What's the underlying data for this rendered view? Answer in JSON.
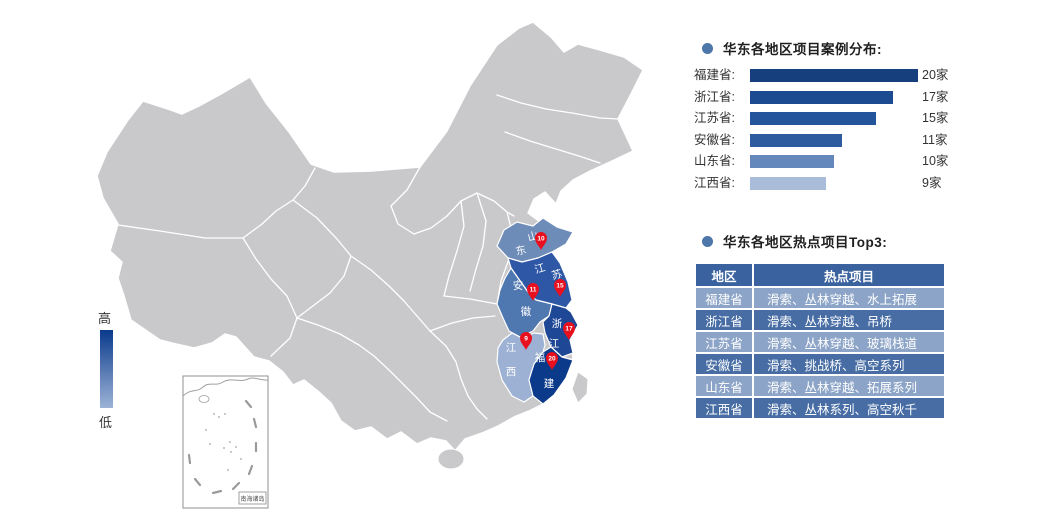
{
  "theme": {
    "bullet_color": "#4d76a9",
    "map_base_color": "#c9c9cc",
    "pin_color": "#e8101f",
    "table_header_bg": "#3a629e",
    "table_row_dark": "#476da4",
    "table_row_light": "#8ca4c7"
  },
  "map": {
    "legend": {
      "high": "高",
      "low": "低",
      "top_color": "#0a3a8c",
      "bottom_color": "#9db3d6"
    },
    "inset_label": "南海诸岛",
    "provinces": [
      {
        "name": "山东省",
        "chars": [
          "山",
          "东"
        ],
        "value": 10,
        "color": "#6d8cb8"
      },
      {
        "name": "江苏省",
        "chars": [
          "江",
          "苏"
        ],
        "value": 15,
        "color": "#2e58a5"
      },
      {
        "name": "安徽省",
        "chars": [
          "安",
          "徽"
        ],
        "value": 11,
        "color": "#4f77b0"
      },
      {
        "name": "浙江省",
        "chars": [
          "浙",
          "江"
        ],
        "value": 17,
        "color": "#1e4896"
      },
      {
        "name": "江西省",
        "chars": [
          "江",
          "西"
        ],
        "value": 9,
        "color": "#9cb1d3"
      },
      {
        "name": "福建省",
        "chars": [
          "福",
          "建"
        ],
        "value": 20,
        "color": "#0c3a8a"
      }
    ]
  },
  "chart_data": {
    "type": "bar",
    "orientation": "horizontal",
    "title": "华东各地区项目案例分布:",
    "categories": [
      "福建省",
      "浙江省",
      "江苏省",
      "安徽省",
      "山东省",
      "江西省"
    ],
    "values": [
      20,
      17,
      15,
      11,
      10,
      9
    ],
    "unit": "家",
    "xlim": [
      0,
      20
    ],
    "bar_labels": [
      "福建省:",
      "浙江省:",
      "江苏省:",
      "安徽省:",
      "山东省:",
      "江西省:"
    ],
    "value_labels": [
      "20家",
      "17家",
      "15家",
      "11家",
      "10家",
      "9家"
    ],
    "bar_colors": [
      "#163f7e",
      "#1d4b91",
      "#24549b",
      "#2e5ba0",
      "#6488bb",
      "#a9bcda"
    ],
    "legend_position": "none",
    "grid": false
  },
  "table": {
    "title": "华东各地区热点项目Top3:",
    "headers": [
      "地区",
      "热点项目"
    ],
    "rows": [
      [
        "福建省",
        "滑索、丛林穿越、水上拓展"
      ],
      [
        "浙江省",
        "滑索、丛林穿越、吊桥"
      ],
      [
        "江苏省",
        "滑索、丛林穿越、玻璃栈道"
      ],
      [
        "安徽省",
        "滑索、挑战桥、高空系列"
      ],
      [
        "山东省",
        "滑索、丛林穿越、拓展系列"
      ],
      [
        "江西省",
        "滑索、丛林系列、高空秋千"
      ]
    ]
  }
}
